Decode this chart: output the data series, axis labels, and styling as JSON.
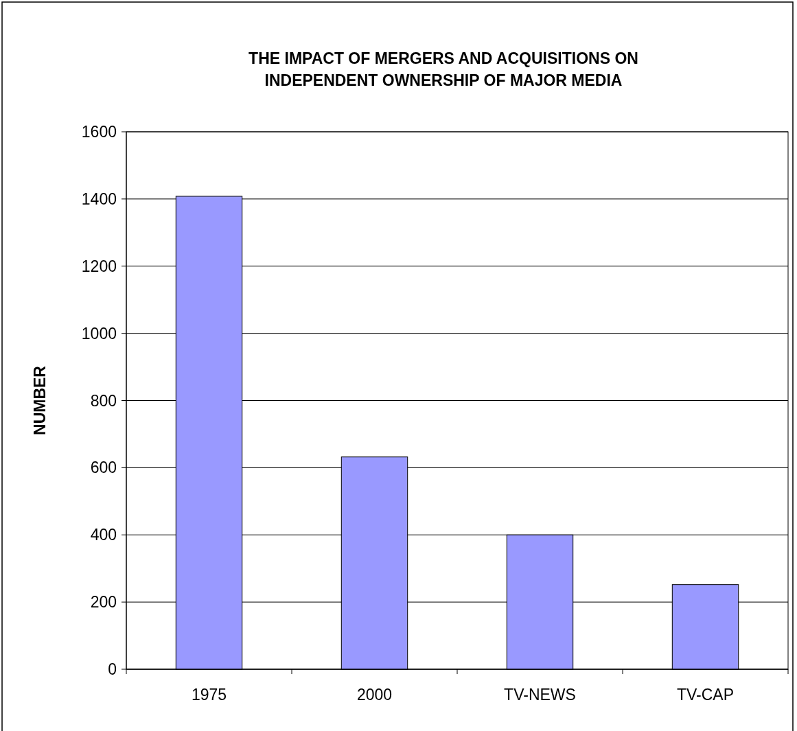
{
  "chart_data": {
    "type": "bar",
    "title": "THE IMPACT OF MERGERS AND ACQUISITIONS ON\nINDEPENDENT OWNERSHIP OF MAJOR MEDIA",
    "ylabel": "NUMBER",
    "categories": [
      "1975",
      "2000",
      "TV-NEWS",
      "TV-CAP"
    ],
    "values": [
      1408,
      632,
      400,
      252
    ],
    "color": "#9999ff",
    "ylim": [
      0,
      1600
    ],
    "yticks": [
      0,
      200,
      400,
      600,
      800,
      1000,
      1200,
      1400,
      1600
    ],
    "grid": "y"
  }
}
